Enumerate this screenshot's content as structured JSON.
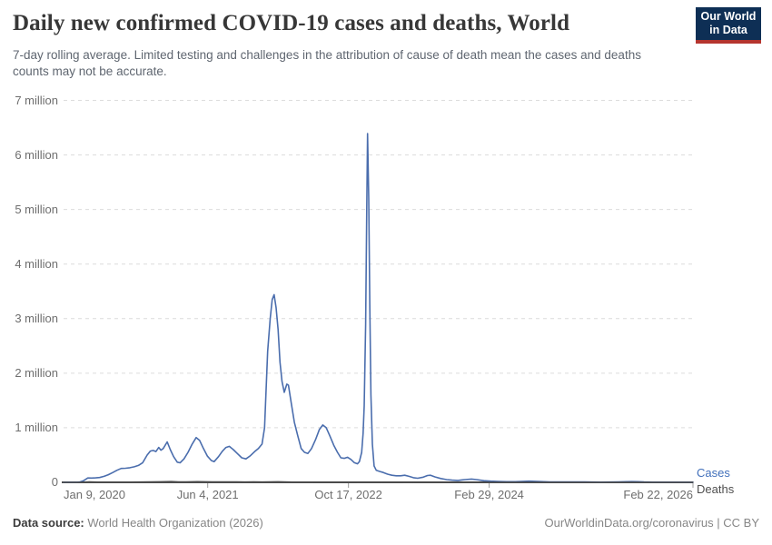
{
  "header": {
    "title": "Daily new confirmed COVID-19 cases and deaths, World",
    "subtitle": "7-day rolling average. Limited testing and challenges in the attribution of cause of death mean the cases and deaths counts may not be accurate.",
    "logo": {
      "line1": "Our World",
      "line2": "in Data",
      "bg_color": "#0e2f55",
      "accent_color": "#b5352f",
      "text_color": "#ffffff"
    }
  },
  "footer": {
    "source_label": "Data source:",
    "source_value": "World Health Organization (2026)",
    "credit": "OurWorldinData.org/coronavirus | CC BY"
  },
  "chart_data": {
    "type": "line",
    "title": "Daily new confirmed COVID-19 cases and deaths, World",
    "xlabel": "",
    "ylabel": "",
    "grid": true,
    "legend_position": "right-end-labels",
    "x_domain": [
      "2020-01-09",
      "2026-02-22"
    ],
    "ylim": [
      0,
      7000000
    ],
    "y_ticks": [
      {
        "value": 0,
        "label": "0"
      },
      {
        "value": 1000000,
        "label": "1 million"
      },
      {
        "value": 2000000,
        "label": "2 million"
      },
      {
        "value": 3000000,
        "label": "3 million"
      },
      {
        "value": 4000000,
        "label": "4 million"
      },
      {
        "value": 5000000,
        "label": "5 million"
      },
      {
        "value": 6000000,
        "label": "6 million"
      },
      {
        "value": 7000000,
        "label": "7 million"
      }
    ],
    "x_ticks": [
      {
        "date": "2020-01-09",
        "label": "Jan 9, 2020"
      },
      {
        "date": "2021-06-04",
        "label": "Jun 4, 2021"
      },
      {
        "date": "2022-10-17",
        "label": "Oct 17, 2022"
      },
      {
        "date": "2024-02-29",
        "label": "Feb 29, 2024"
      },
      {
        "date": "2026-02-22",
        "label": "Feb 22, 2026"
      }
    ],
    "series": [
      {
        "name": "Cases",
        "color": "#4a6dad",
        "label_color": "#4270bb",
        "points": [
          [
            "2020-01-09",
            0
          ],
          [
            "2020-02-02",
            4000
          ],
          [
            "2020-02-20",
            2000
          ],
          [
            "2020-03-05",
            5000
          ],
          [
            "2020-03-20",
            30000
          ],
          [
            "2020-04-04",
            80000
          ],
          [
            "2020-04-18",
            78000
          ],
          [
            "2020-05-02",
            82000
          ],
          [
            "2020-05-16",
            88000
          ],
          [
            "2020-06-01",
            110000
          ],
          [
            "2020-06-16",
            140000
          ],
          [
            "2020-07-02",
            180000
          ],
          [
            "2020-07-16",
            220000
          ],
          [
            "2020-08-01",
            255000
          ],
          [
            "2020-08-16",
            258000
          ],
          [
            "2020-09-01",
            268000
          ],
          [
            "2020-09-16",
            285000
          ],
          [
            "2020-10-01",
            310000
          ],
          [
            "2020-10-16",
            360000
          ],
          [
            "2020-11-01",
            500000
          ],
          [
            "2020-11-12",
            572000
          ],
          [
            "2020-11-22",
            585000
          ],
          [
            "2020-12-02",
            565000
          ],
          [
            "2020-12-12",
            640000
          ],
          [
            "2020-12-20",
            590000
          ],
          [
            "2020-12-28",
            620000
          ],
          [
            "2021-01-11",
            740000
          ],
          [
            "2021-01-22",
            600000
          ],
          [
            "2021-02-03",
            470000
          ],
          [
            "2021-02-16",
            370000
          ],
          [
            "2021-02-26",
            358000
          ],
          [
            "2021-03-12",
            430000
          ],
          [
            "2021-03-26",
            550000
          ],
          [
            "2021-04-10",
            700000
          ],
          [
            "2021-04-24",
            820000
          ],
          [
            "2021-05-06",
            770000
          ],
          [
            "2021-05-20",
            620000
          ],
          [
            "2021-06-03",
            480000
          ],
          [
            "2021-06-17",
            400000
          ],
          [
            "2021-06-27",
            380000
          ],
          [
            "2021-07-12",
            470000
          ],
          [
            "2021-07-26",
            570000
          ],
          [
            "2021-08-08",
            640000
          ],
          [
            "2021-08-20",
            660000
          ],
          [
            "2021-09-03",
            600000
          ],
          [
            "2021-09-17",
            530000
          ],
          [
            "2021-10-03",
            450000
          ],
          [
            "2021-10-18",
            430000
          ],
          [
            "2021-11-03",
            490000
          ],
          [
            "2021-11-17",
            560000
          ],
          [
            "2021-12-01",
            620000
          ],
          [
            "2021-12-14",
            700000
          ],
          [
            "2021-12-23",
            1000000
          ],
          [
            "2022-01-03",
            2400000
          ],
          [
            "2022-01-12",
            3000000
          ],
          [
            "2022-01-19",
            3350000
          ],
          [
            "2022-01-26",
            3440000
          ],
          [
            "2022-02-02",
            3200000
          ],
          [
            "2022-02-09",
            2800000
          ],
          [
            "2022-02-16",
            2200000
          ],
          [
            "2022-02-23",
            1850000
          ],
          [
            "2022-03-03",
            1650000
          ],
          [
            "2022-03-12",
            1800000
          ],
          [
            "2022-03-18",
            1780000
          ],
          [
            "2022-03-28",
            1450000
          ],
          [
            "2022-04-08",
            1100000
          ],
          [
            "2022-04-20",
            850000
          ],
          [
            "2022-05-02",
            620000
          ],
          [
            "2022-05-14",
            550000
          ],
          [
            "2022-05-26",
            530000
          ],
          [
            "2022-06-08",
            620000
          ],
          [
            "2022-06-22",
            780000
          ],
          [
            "2022-07-06",
            970000
          ],
          [
            "2022-07-18",
            1050000
          ],
          [
            "2022-07-30",
            1000000
          ],
          [
            "2022-08-12",
            850000
          ],
          [
            "2022-08-26",
            680000
          ],
          [
            "2022-09-08",
            550000
          ],
          [
            "2022-09-20",
            450000
          ],
          [
            "2022-10-02",
            440000
          ],
          [
            "2022-10-14",
            460000
          ],
          [
            "2022-10-26",
            420000
          ],
          [
            "2022-11-07",
            360000
          ],
          [
            "2022-11-18",
            340000
          ],
          [
            "2022-11-25",
            380000
          ],
          [
            "2022-12-03",
            550000
          ],
          [
            "2022-12-08",
            900000
          ],
          [
            "2022-12-12",
            1400000
          ],
          [
            "2022-12-17",
            2900000
          ],
          [
            "2022-12-21",
            5000000
          ],
          [
            "2022-12-24",
            6390000
          ],
          [
            "2022-12-28",
            5200000
          ],
          [
            "2023-01-01",
            3200000
          ],
          [
            "2023-01-05",
            1600000
          ],
          [
            "2023-01-10",
            700000
          ],
          [
            "2023-01-16",
            300000
          ],
          [
            "2023-01-24",
            220000
          ],
          [
            "2023-02-05",
            200000
          ],
          [
            "2023-02-18",
            180000
          ],
          [
            "2023-03-05",
            150000
          ],
          [
            "2023-03-20",
            130000
          ],
          [
            "2023-04-05",
            120000
          ],
          [
            "2023-04-20",
            120000
          ],
          [
            "2023-05-05",
            130000
          ],
          [
            "2023-05-20",
            110000
          ],
          [
            "2023-06-05",
            85000
          ],
          [
            "2023-06-20",
            75000
          ],
          [
            "2023-07-10",
            95000
          ],
          [
            "2023-07-25",
            125000
          ],
          [
            "2023-08-05",
            130000
          ],
          [
            "2023-08-20",
            100000
          ],
          [
            "2023-09-10",
            70000
          ],
          [
            "2023-10-01",
            50000
          ],
          [
            "2023-10-20",
            40000
          ],
          [
            "2023-11-10",
            35000
          ],
          [
            "2023-12-05",
            50000
          ],
          [
            "2023-12-28",
            60000
          ],
          [
            "2024-01-15",
            50000
          ],
          [
            "2024-02-10",
            30000
          ],
          [
            "2024-03-05",
            22000
          ],
          [
            "2024-04-01",
            16000
          ],
          [
            "2024-05-01",
            11000
          ],
          [
            "2024-06-01",
            11000
          ],
          [
            "2024-07-01",
            18000
          ],
          [
            "2024-07-20",
            22000
          ],
          [
            "2024-08-10",
            19000
          ],
          [
            "2024-09-01",
            14000
          ],
          [
            "2024-10-01",
            9000
          ],
          [
            "2024-11-01",
            7000
          ],
          [
            "2024-12-01",
            7000
          ],
          [
            "2025-01-01",
            9000
          ],
          [
            "2025-02-01",
            7000
          ],
          [
            "2025-03-01",
            5000
          ],
          [
            "2025-04-01",
            4000
          ],
          [
            "2025-05-01",
            5000
          ],
          [
            "2025-06-01",
            8000
          ],
          [
            "2025-07-01",
            12000
          ],
          [
            "2025-07-20",
            14000
          ],
          [
            "2025-08-10",
            11000
          ],
          [
            "2025-09-01",
            7000
          ],
          [
            "2025-10-01",
            4000
          ],
          [
            "2025-11-01",
            3000
          ],
          [
            "2025-12-01",
            3000
          ],
          [
            "2026-01-01",
            3000
          ],
          [
            "2026-02-22",
            2000
          ]
        ]
      },
      {
        "name": "Deaths",
        "color": "#4a4a4a",
        "label_color": "#4f4f4f",
        "points": [
          [
            "2020-01-09",
            0
          ],
          [
            "2020-03-10",
            600
          ],
          [
            "2020-04-10",
            7500
          ],
          [
            "2020-05-10",
            5200
          ],
          [
            "2020-06-10",
            4500
          ],
          [
            "2020-07-20",
            5800
          ],
          [
            "2020-09-01",
            5400
          ],
          [
            "2020-10-10",
            5900
          ],
          [
            "2020-11-15",
            9000
          ],
          [
            "2020-12-20",
            11000
          ],
          [
            "2021-01-26",
            14500
          ],
          [
            "2021-02-20",
            9500
          ],
          [
            "2021-03-20",
            9000
          ],
          [
            "2021-04-28",
            13500
          ],
          [
            "2021-05-25",
            11000
          ],
          [
            "2021-06-20",
            8000
          ],
          [
            "2021-08-05",
            10300
          ],
          [
            "2021-09-15",
            8200
          ],
          [
            "2021-10-15",
            7000
          ],
          [
            "2021-11-15",
            7500
          ],
          [
            "2021-12-15",
            7000
          ],
          [
            "2022-02-09",
            11000
          ],
          [
            "2022-03-15",
            7000
          ],
          [
            "2022-04-15",
            4000
          ],
          [
            "2022-05-15",
            3000
          ],
          [
            "2022-06-15",
            1600
          ],
          [
            "2022-07-25",
            2400
          ],
          [
            "2022-09-01",
            1900
          ],
          [
            "2022-10-15",
            1500
          ],
          [
            "2022-11-15",
            1400
          ],
          [
            "2023-01-12",
            4000
          ],
          [
            "2023-02-15",
            2000
          ],
          [
            "2023-03-15",
            1200
          ],
          [
            "2023-05-01",
            900
          ],
          [
            "2023-07-01",
            500
          ],
          [
            "2023-09-01",
            400
          ],
          [
            "2023-12-01",
            400
          ],
          [
            "2024-02-01",
            500
          ],
          [
            "2024-06-01",
            200
          ],
          [
            "2024-12-01",
            150
          ],
          [
            "2025-06-01",
            100
          ],
          [
            "2026-02-22",
            80
          ]
        ]
      }
    ]
  }
}
